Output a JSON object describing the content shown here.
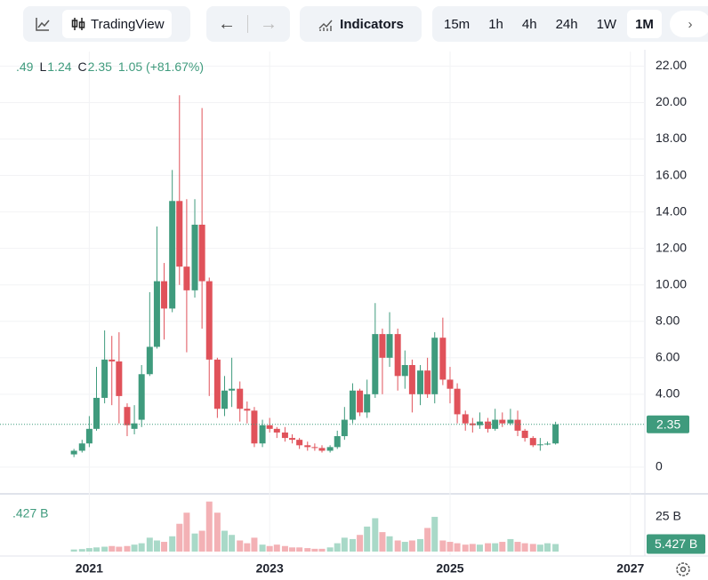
{
  "toolbar": {
    "brand": "TradingView",
    "indicators": "Indicators",
    "intervals": [
      "15m",
      "1h",
      "4h",
      "24h",
      "1W",
      "1M"
    ],
    "active_interval": "1M"
  },
  "legend": [
    ".49",
    "L",
    "1.24",
    "C",
    "2.35",
    "1.05 (+81.67%)"
  ],
  "chart_data": {
    "type": "candlestick",
    "x": [
      2020.83,
      2020.92,
      2021.0,
      2021.08,
      2021.17,
      2021.25,
      2021.33,
      2021.42,
      2021.5,
      2021.58,
      2021.67,
      2021.75,
      2021.83,
      2021.92,
      2022.0,
      2022.08,
      2022.17,
      2022.25,
      2022.33,
      2022.42,
      2022.5,
      2022.58,
      2022.67,
      2022.75,
      2022.83,
      2022.92,
      2023.0,
      2023.08,
      2023.17,
      2023.25,
      2023.33,
      2023.42,
      2023.5,
      2023.58,
      2023.67,
      2023.75,
      2023.83,
      2023.92,
      2024.0,
      2024.08,
      2024.17,
      2024.25,
      2024.33,
      2024.42,
      2024.5,
      2024.58,
      2024.67,
      2024.75,
      2024.83,
      2024.92,
      2025.0,
      2025.08,
      2025.17,
      2025.25,
      2025.33,
      2025.42,
      2025.5,
      2025.58,
      2025.67,
      2025.75,
      2025.83,
      2025.92,
      2026.0,
      2026.08,
      2026.17
    ],
    "open": [
      0.7,
      0.9,
      1.3,
      2.1,
      3.8,
      5.9,
      5.8,
      3.3,
      2.1,
      2.6,
      5.1,
      6.6,
      10.2,
      8.7,
      14.6,
      11.0,
      9.7,
      13.3,
      10.2,
      5.9,
      3.2,
      4.2,
      4.3,
      3.2,
      3.1,
      1.3,
      2.3,
      2.1,
      1.9,
      1.6,
      1.5,
      1.2,
      1.1,
      1.05,
      0.9,
      1.1,
      1.7,
      2.6,
      4.2,
      3.0,
      4.0,
      7.3,
      6.0,
      7.3,
      5.0,
      5.6,
      4.0,
      5.3,
      4.0,
      7.1,
      4.8,
      4.3,
      2.9,
      2.4,
      2.3,
      2.5,
      2.1,
      2.6,
      2.4,
      2.6,
      2.0,
      1.6,
      1.2,
      1.25,
      1.3
    ],
    "high": [
      1.0,
      1.5,
      2.8,
      5.5,
      7.5,
      7.2,
      7.4,
      3.5,
      3.4,
      5.6,
      9.6,
      13.2,
      11.2,
      16.3,
      20.4,
      14.7,
      14.7,
      19.7,
      10.4,
      6.0,
      5.0,
      6.0,
      4.7,
      3.6,
      3.3,
      2.6,
      2.7,
      2.2,
      2.2,
      1.8,
      1.6,
      1.4,
      1.3,
      1.2,
      1.2,
      2.0,
      3.3,
      4.6,
      4.3,
      4.8,
      9.0,
      7.6,
      8.5,
      7.6,
      6.4,
      5.9,
      5.6,
      6.0,
      7.4,
      8.2,
      5.5,
      4.6,
      3.1,
      2.7,
      3.0,
      2.7,
      3.2,
      3.0,
      3.2,
      3.1,
      2.1,
      1.7,
      1.6,
      1.4,
      2.49
    ],
    "low": [
      0.55,
      0.8,
      1.1,
      2.0,
      3.5,
      3.4,
      2.4,
      1.7,
      1.8,
      2.2,
      5.0,
      6.5,
      7.0,
      8.5,
      10.0,
      6.3,
      9.3,
      7.6,
      3.9,
      2.7,
      2.8,
      3.3,
      2.5,
      2.4,
      1.1,
      1.1,
      1.9,
      1.6,
      1.4,
      1.3,
      1.0,
      0.9,
      0.9,
      0.8,
      0.8,
      1.0,
      1.5,
      2.4,
      2.8,
      2.7,
      3.8,
      4.0,
      5.5,
      4.2,
      4.3,
      3.0,
      3.4,
      3.8,
      3.5,
      4.5,
      3.5,
      2.4,
      2.0,
      1.9,
      2.1,
      1.9,
      2.0,
      2.2,
      2.3,
      1.7,
      1.4,
      1.1,
      0.9,
      1.2,
      1.24
    ],
    "close": [
      0.9,
      1.3,
      2.1,
      3.8,
      5.9,
      5.8,
      3.9,
      2.3,
      2.4,
      5.1,
      6.6,
      10.2,
      8.7,
      14.6,
      11.0,
      9.7,
      13.3,
      10.2,
      5.9,
      3.2,
      4.2,
      4.3,
      3.2,
      3.1,
      1.3,
      2.3,
      2.1,
      1.9,
      1.6,
      1.5,
      1.2,
      1.1,
      1.05,
      0.9,
      1.1,
      1.7,
      2.6,
      4.2,
      3.0,
      4.0,
      7.3,
      6.0,
      7.3,
      5.0,
      5.6,
      4.0,
      5.3,
      4.0,
      7.1,
      4.8,
      4.3,
      2.9,
      2.4,
      2.3,
      2.5,
      2.1,
      2.6,
      2.4,
      2.6,
      2.0,
      1.6,
      1.2,
      1.25,
      1.29,
      2.35
    ],
    "volume": [
      1.5,
      1.8,
      2.5,
      3,
      3.5,
      4,
      3.5,
      4,
      5,
      6,
      10,
      8,
      7,
      11,
      20,
      28,
      13,
      15,
      36,
      28,
      15,
      12,
      8,
      6,
      10,
      5,
      4,
      5,
      4,
      3,
      3,
      2.5,
      2,
      2,
      3,
      6,
      10,
      9,
      12,
      18,
      24,
      14,
      11,
      8,
      7,
      8,
      9,
      17,
      25,
      8,
      7,
      6,
      5,
      5.5,
      5,
      6,
      6,
      7,
      9,
      7,
      6,
      5.5,
      5,
      6,
      5.427
    ],
    "volume_legend": ".427 B",
    "volume_tag": {
      "value": 5.427,
      "label": "5.427 B"
    },
    "up_color": "#3f9b7d",
    "down_color": "#e0525a",
    "up_volume_color": "#a9d9c8",
    "down_volume_color": "#f3b1b5",
    "xlim": [
      2020.01,
      2027.16
    ],
    "xticks": [
      2021,
      2023,
      2025,
      2027
    ],
    "ylim": [
      -1.27,
      22.8
    ],
    "yticks": [
      0,
      {
        "value": 4,
        "label": "4.00"
      },
      {
        "value": 6,
        "label": "6.00"
      },
      {
        "value": 8,
        "label": "8.00"
      },
      {
        "value": 10,
        "label": "10.00"
      },
      {
        "value": 12,
        "label": "12.00"
      },
      {
        "value": 14,
        "label": "14.00"
      },
      {
        "value": 16,
        "label": "16.00"
      },
      {
        "value": 18,
        "label": "18.00"
      },
      {
        "value": 20,
        "label": "20.00"
      },
      {
        "value": 22,
        "label": "22.00"
      }
    ],
    "vlim": [
      0,
      39
    ],
    "vticks": [
      {
        "value": 25,
        "label": "25 B"
      }
    ],
    "grid": true
  }
}
